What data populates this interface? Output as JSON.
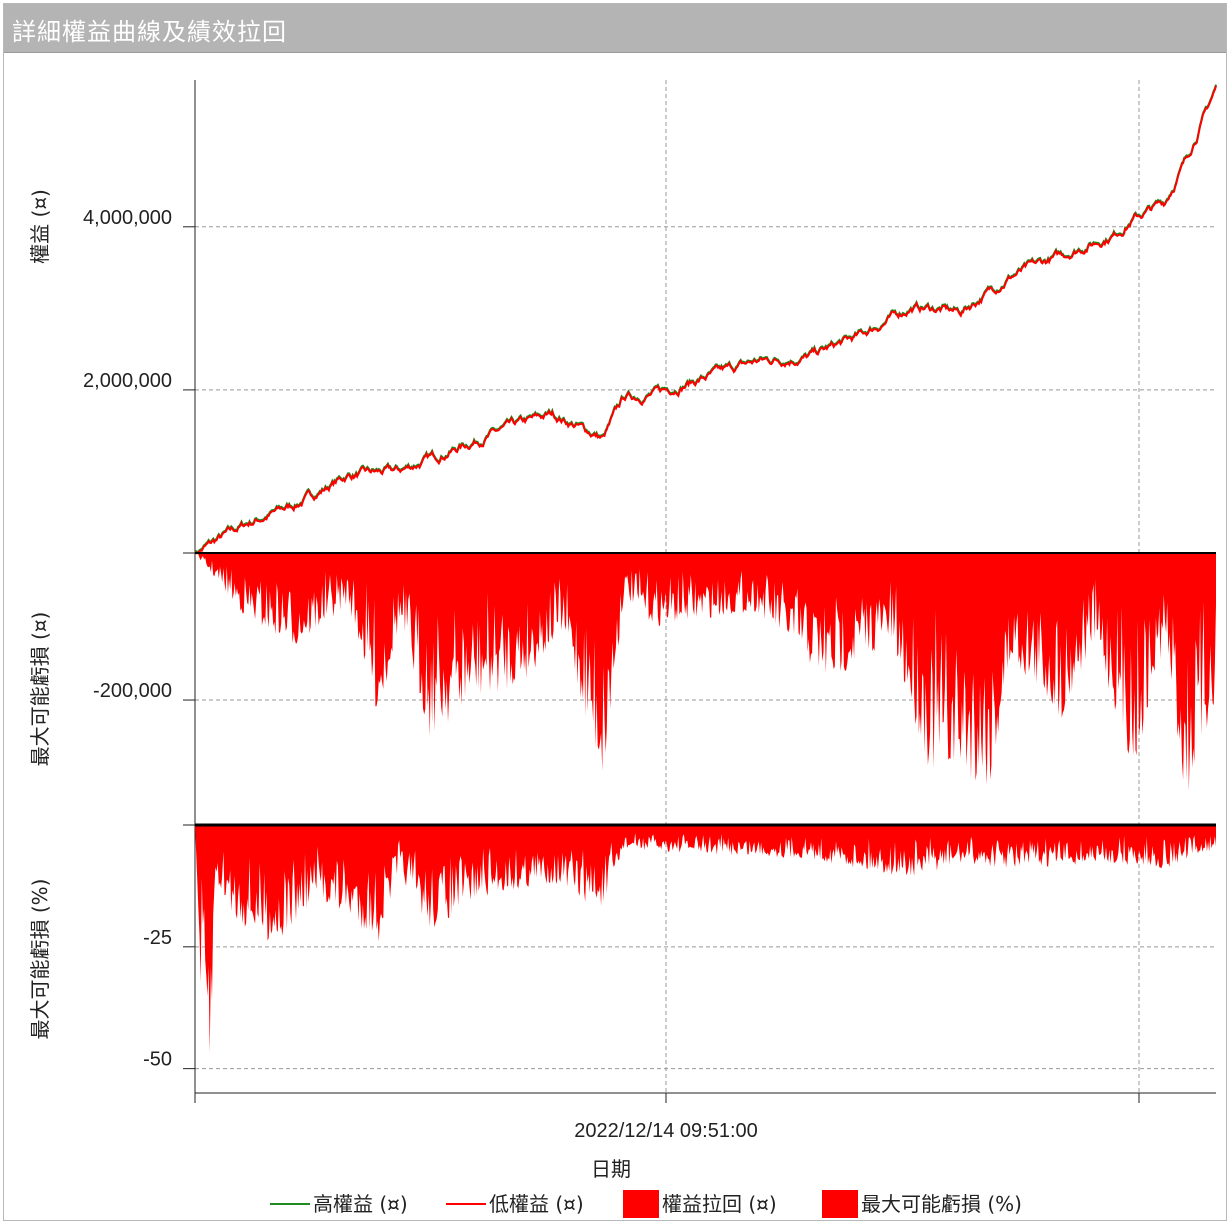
{
  "window": {
    "title": "詳細權益曲線及績效拉回"
  },
  "chart_data": {
    "type": "line",
    "title": "詳細權益曲線及績效拉回",
    "xlabel": "日期",
    "x_ticks": [
      "2022/12/14 09:51:00"
    ],
    "panels": [
      {
        "id": "equity",
        "ylabel": "權益 (¤)",
        "y_ticks": [
          "2,000,000",
          "4,000,000"
        ],
        "y_tick_values": [
          2000000,
          4000000
        ],
        "ylim": [
          0,
          5800000
        ],
        "series": [
          {
            "name": "高權益 (¤)",
            "color": "#1f8a1f"
          },
          {
            "name": "低權益 (¤)",
            "color": "#ff0000"
          }
        ],
        "x": [
          0,
          0.05,
          0.1,
          0.15,
          0.2,
          0.25,
          0.3,
          0.35,
          0.4,
          0.42,
          0.45,
          0.5,
          0.55,
          0.6,
          0.65,
          0.7,
          0.72,
          0.75,
          0.8,
          0.85,
          0.9,
          0.92,
          0.95,
          0.97,
          1.0
        ],
        "values": [
          0,
          350000,
          600000,
          950000,
          1000000,
          1250000,
          1500000,
          1700000,
          1400000,
          1900000,
          1950000,
          2150000,
          2350000,
          2400000,
          2650000,
          3000000,
          3000000,
          2950000,
          3400000,
          3650000,
          3900000,
          4100000,
          4300000,
          4800000,
          5700000
        ]
      },
      {
        "id": "drawdown",
        "ylabel": "最大可能虧損 (¤)",
        "y_ticks": [
          "-200,000"
        ],
        "y_tick_values": [
          -200000
        ],
        "ylim": [
          -370000,
          0
        ],
        "series": [
          {
            "name": "權益拉回 (¤)",
            "color": "#ff0000"
          }
        ],
        "x": [
          0,
          0.05,
          0.1,
          0.15,
          0.18,
          0.2,
          0.23,
          0.28,
          0.32,
          0.36,
          0.4,
          0.42,
          0.45,
          0.5,
          0.55,
          0.62,
          0.68,
          0.72,
          0.78,
          0.8,
          0.85,
          0.88,
          0.92,
          0.95,
          0.97,
          1.0
        ],
        "values": [
          0,
          -90000,
          -130000,
          -70000,
          -230000,
          -100000,
          -250000,
          -200000,
          -180000,
          -110000,
          -320000,
          -60000,
          -100000,
          -90000,
          -80000,
          -180000,
          -120000,
          -300000,
          -320000,
          -150000,
          -230000,
          -120000,
          -300000,
          -120000,
          -350000,
          -200000
        ]
      },
      {
        "id": "drawdown_pct",
        "ylabel": "最大可能虧損 (%)",
        "y_ticks": [
          "-25",
          "-50"
        ],
        "y_tick_values": [
          -25,
          -50
        ],
        "ylim": [
          -55,
          0
        ],
        "series": [
          {
            "name": "最大可能虧損 (%)",
            "color": "#ff0000"
          }
        ],
        "x": [
          0,
          0.005,
          0.015,
          0.02,
          0.04,
          0.08,
          0.12,
          0.18,
          0.2,
          0.23,
          0.28,
          0.35,
          0.4,
          0.42,
          0.5,
          0.6,
          0.7,
          0.75,
          0.8,
          0.9,
          0.95,
          1.0
        ],
        "values": [
          0,
          -35,
          -54,
          -12,
          -20,
          -25,
          -15,
          -24,
          -10,
          -22,
          -15,
          -12,
          -18,
          -5,
          -6,
          -7,
          -11,
          -8,
          -9,
          -8,
          -9,
          -5
        ]
      }
    ],
    "legend": {
      "placement": "bottom",
      "items": [
        {
          "label": "高權益 (¤)",
          "kind": "line",
          "color": "#1f8a1f"
        },
        {
          "label": "低權益 (¤)",
          "kind": "line",
          "color": "#ff0000"
        },
        {
          "label": "權益拉回 (¤)",
          "kind": "box",
          "color": "#ff0000"
        },
        {
          "label": "最大可能虧損 (%)",
          "kind": "box",
          "color": "#ff0000"
        }
      ]
    },
    "grid": true
  }
}
